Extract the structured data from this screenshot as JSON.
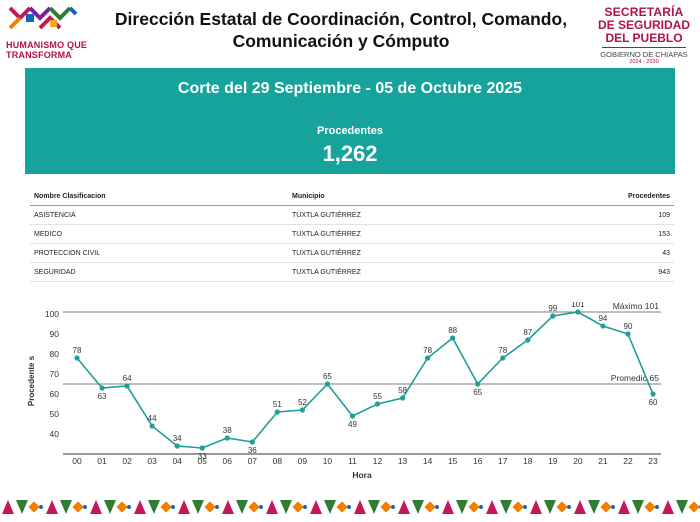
{
  "header": {
    "left_logo_text_line1": "HUMANISMO QUE",
    "left_logo_text_line2": "TRANSFORMA",
    "title_line1": "Dirección Estatal de Coordinación, Control, Comando,",
    "title_line2": "Comunicación y Cómputo",
    "right_logo_line1": "SECRETARÍA",
    "right_logo_line2": "DE SEGURIDAD",
    "right_logo_line3": "DEL PUEBLO",
    "right_logo_line4": "GOBIERNO DE CHIAPAS",
    "right_logo_line5": "2024 - 2030"
  },
  "banner": {
    "title": "Corte del 29 Septiembre - 05 de Octubre 2025",
    "label": "Procedentes",
    "value": "1,262"
  },
  "table": {
    "headers": [
      "Nombre Clasificacion",
      "Municipio",
      "Procedentes"
    ],
    "rows": [
      [
        "ASISTENCIA",
        "TUXTLA GUTIÉRREZ",
        "109"
      ],
      [
        "MEDICO",
        "TUXTLA GUTIÉRREZ",
        "153"
      ],
      [
        "PROTECCION CIVIL",
        "TUXTLA GUTIÉRREZ",
        "43"
      ],
      [
        "SEGURIDAD",
        "TUXTLA GUTIÉRREZ",
        "943"
      ]
    ]
  },
  "colors": {
    "teal": "#16a39c",
    "line": "#1f9e9a",
    "brand_magenta": "#b0124a"
  },
  "chart_data": {
    "type": "line",
    "categories": [
      "00",
      "01",
      "02",
      "03",
      "04",
      "05",
      "06",
      "07",
      "08",
      "09",
      "10",
      "11",
      "12",
      "13",
      "14",
      "15",
      "16",
      "17",
      "18",
      "19",
      "20",
      "21",
      "22",
      "23"
    ],
    "series": [
      {
        "values": [
          78,
          63,
          64,
          44,
          34,
          33,
          38,
          36,
          51,
          52,
          65,
          49,
          55,
          58,
          78,
          88,
          65,
          78,
          87,
          99,
          101,
          94,
          90,
          60
        ]
      }
    ],
    "xlabel": "Hora",
    "ylabel": "Procedente s",
    "ylim": [
      30,
      103
    ],
    "yticks": [
      40,
      50,
      60,
      70,
      80,
      90,
      100
    ],
    "reference_lines": [
      {
        "label": "Máximo 101",
        "value": 101
      },
      {
        "label": "Promedio 65",
        "value": 65
      }
    ],
    "grid": false,
    "legend": "none"
  }
}
